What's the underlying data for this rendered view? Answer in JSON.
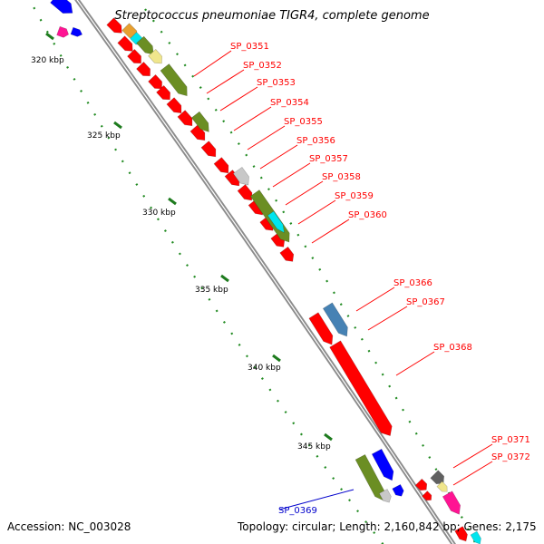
{
  "title": "Streptococcus pneumoniae TIGR4, complete genome",
  "footer": {
    "accession": "Accession: NC_003028",
    "summary": "Topology: circular; Length: 2,160,842 bp; Genes: 2,175"
  },
  "scale_labels": [
    "320 kbp",
    "325 kbp",
    "330 kbp",
    "335 kbp",
    "340 kbp",
    "345 kbp"
  ],
  "gene_labels": [
    {
      "text": "SP_0351",
      "color": "#ff0000"
    },
    {
      "text": "SP_0352",
      "color": "#ff0000"
    },
    {
      "text": "SP_0353",
      "color": "#ff0000"
    },
    {
      "text": "SP_0354",
      "color": "#ff0000"
    },
    {
      "text": "SP_0355",
      "color": "#ff0000"
    },
    {
      "text": "SP_0356",
      "color": "#ff0000"
    },
    {
      "text": "SP_0357",
      "color": "#ff0000"
    },
    {
      "text": "SP_0358",
      "color": "#ff0000"
    },
    {
      "text": "SP_0359",
      "color": "#ff0000"
    },
    {
      "text": "SP_0360",
      "color": "#ff0000"
    },
    {
      "text": "SP_0366",
      "color": "#ff0000"
    },
    {
      "text": "SP_0367",
      "color": "#ff0000"
    },
    {
      "text": "SP_0368",
      "color": "#ff0000"
    },
    {
      "text": "SP_0371",
      "color": "#ff0000"
    },
    {
      "text": "SP_0372",
      "color": "#ff0000"
    },
    {
      "text": "SP_0369",
      "color": "#0000cc"
    }
  ],
  "colors": {
    "backbone": "#8c8c8c",
    "gene_red": "#ff0000",
    "olive": "#6b8e23",
    "steelblue": "#4682b4",
    "cyan": "#00e5ee",
    "grey": "#c8c8c8",
    "blue": "#0000ff",
    "magenta": "#ff1493",
    "tan": "#f0e68c",
    "dotted_ring": "#228b22"
  }
}
